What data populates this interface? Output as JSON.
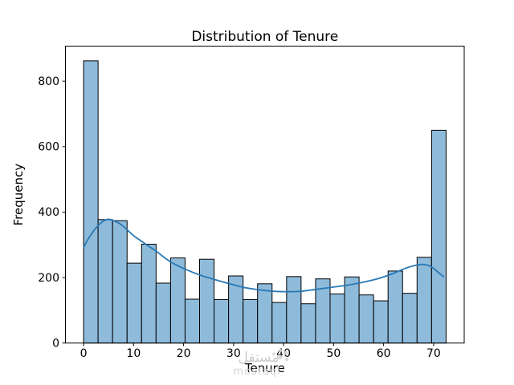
{
  "figure": {
    "title": "Distribution of Tenure",
    "xlabel": "Tenure",
    "ylabel": "Frequency"
  },
  "chart_data": {
    "type": "bar",
    "subtype": "histogram-with-kde",
    "title": "Distribution of Tenure",
    "xlabel": "Tenure",
    "ylabel": "Frequency",
    "bin_start": 0,
    "bin_width": 2.9,
    "frequencies": [
      862,
      377,
      374,
      244,
      302,
      183,
      260,
      134,
      256,
      133,
      205,
      133,
      181,
      124,
      203,
      120,
      196,
      150,
      202,
      147,
      129,
      220,
      152,
      262,
      650
    ],
    "kde_points": [
      [
        0,
        292
      ],
      [
        1,
        320
      ],
      [
        2.5,
        352
      ],
      [
        4,
        373
      ],
      [
        5,
        378
      ],
      [
        6,
        374
      ],
      [
        7.5,
        362
      ],
      [
        9,
        342
      ],
      [
        10,
        328
      ],
      [
        11.5,
        312
      ],
      [
        13,
        296
      ],
      [
        14.5,
        281
      ],
      [
        16,
        263
      ],
      [
        17.5,
        247
      ],
      [
        19,
        235
      ],
      [
        20,
        228
      ],
      [
        22,
        215
      ],
      [
        24,
        204
      ],
      [
        26,
        195
      ],
      [
        28,
        186
      ],
      [
        30,
        178
      ],
      [
        32,
        170
      ],
      [
        34,
        165
      ],
      [
        36,
        161
      ],
      [
        38,
        158
      ],
      [
        40,
        157
      ],
      [
        42,
        157
      ],
      [
        44,
        159
      ],
      [
        46,
        163
      ],
      [
        48,
        167
      ],
      [
        50,
        171
      ],
      [
        52,
        175
      ],
      [
        54,
        180
      ],
      [
        56,
        186
      ],
      [
        58,
        193
      ],
      [
        60,
        202
      ],
      [
        62,
        213
      ],
      [
        64,
        226
      ],
      [
        65.5,
        234
      ],
      [
        67,
        239
      ],
      [
        68,
        240
      ],
      [
        69,
        237
      ],
      [
        70,
        228
      ],
      [
        71,
        215
      ],
      [
        72,
        203
      ]
    ],
    "xticks": [
      0,
      10,
      20,
      30,
      40,
      50,
      60,
      70
    ],
    "yticks": [
      0,
      200,
      400,
      600,
      800
    ],
    "xlim": [
      -3.625,
      76.125
    ],
    "ylim": [
      0,
      907
    ],
    "grid": false,
    "legend": null,
    "bar_fill": "#8fbbda",
    "bar_edge": "#000000",
    "line_color": "#2878b5"
  },
  "watermark": {
    "arabic": "مستقل",
    "latin": "mostaql"
  }
}
